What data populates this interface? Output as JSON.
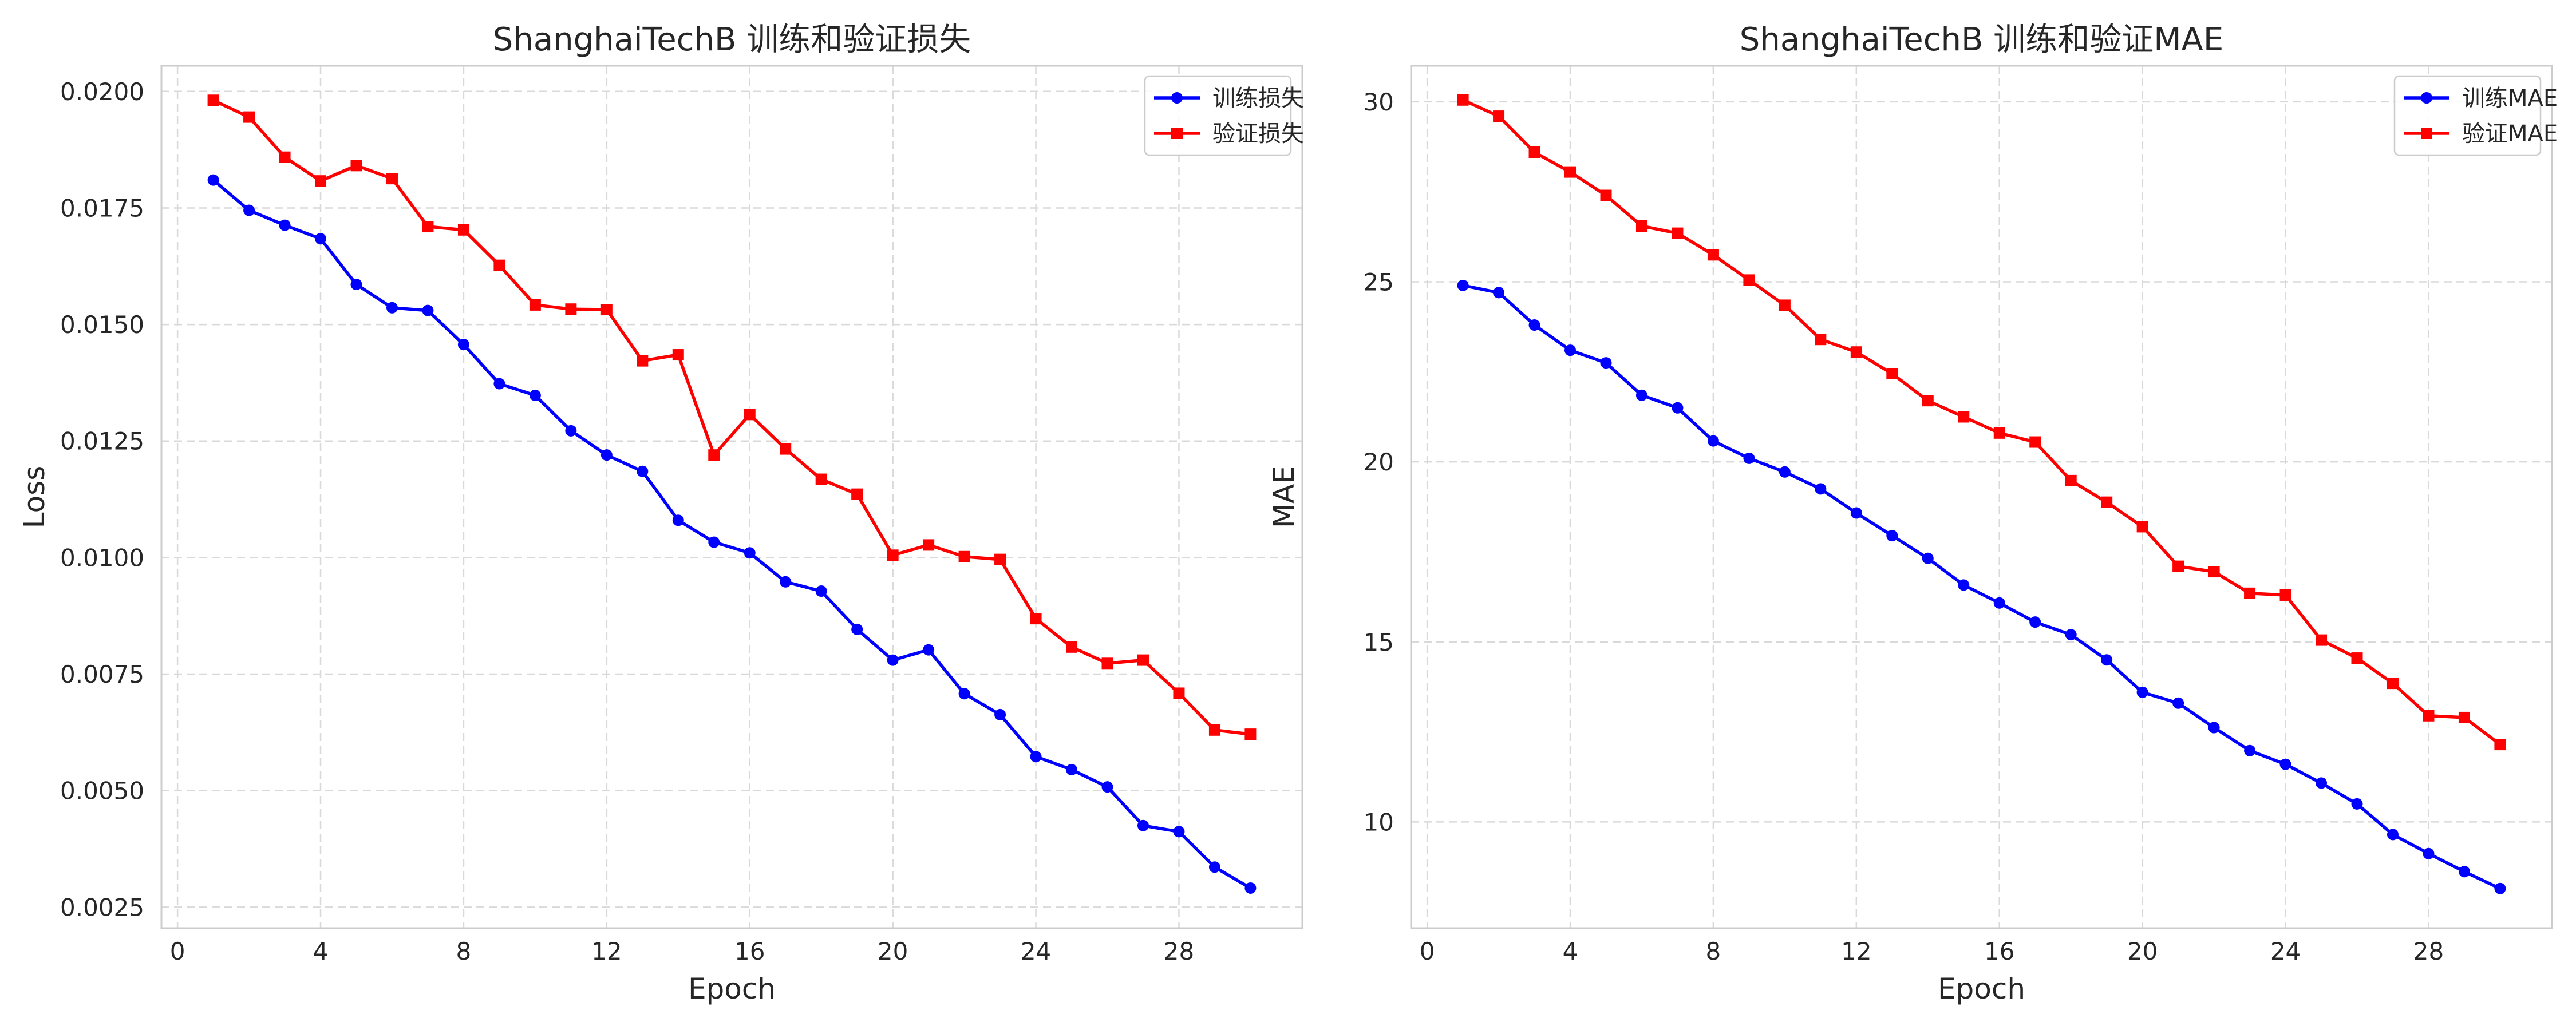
{
  "chart_data": [
    {
      "type": "line",
      "title": "ShanghaiTechB 训练和验证损失",
      "xlabel": "Epoch",
      "ylabel": "Loss",
      "xlim": [
        -0.45,
        31.45
      ],
      "ylim": [
        0.00205,
        0.02055
      ],
      "xticks": [
        0,
        4,
        8,
        12,
        16,
        20,
        24,
        28
      ],
      "yticks": [
        0.0025,
        0.005,
        0.0075,
        0.01,
        0.0125,
        0.015,
        0.0175,
        0.02
      ],
      "ytick_labels": [
        "0.0025",
        "0.0050",
        "0.0075",
        "0.0100",
        "0.0125",
        "0.0150",
        "0.0175",
        "0.0200"
      ],
      "grid": true,
      "legend_position": "upper right",
      "x": [
        1,
        2,
        3,
        4,
        5,
        6,
        7,
        8,
        9,
        10,
        11,
        12,
        13,
        14,
        15,
        16,
        17,
        18,
        19,
        20,
        21,
        22,
        23,
        24,
        25,
        26,
        27,
        28,
        29,
        30
      ],
      "series": [
        {
          "name": "训练损失",
          "color": "#0000ff",
          "marker": "circle",
          "values": [
            0.0181,
            0.01745,
            0.01713,
            0.01684,
            0.01586,
            0.01536,
            0.0153,
            0.01457,
            0.01373,
            0.01348,
            0.01272,
            0.0122,
            0.01185,
            0.0108,
            0.01033,
            0.0101,
            0.00948,
            0.00928,
            0.00846,
            0.0078,
            0.00802,
            0.00708,
            0.00663,
            0.00573,
            0.00545,
            0.00508,
            0.00425,
            0.00412,
            0.00336,
            0.00291
          ]
        },
        {
          "name": "验证损失",
          "color": "#ff0000",
          "marker": "square",
          "values": [
            0.01981,
            0.01945,
            0.01859,
            0.01808,
            0.01841,
            0.01813,
            0.0171,
            0.01703,
            0.01627,
            0.01542,
            0.01533,
            0.01532,
            0.01422,
            0.01435,
            0.0122,
            0.01307,
            0.01233,
            0.01168,
            0.01136,
            0.01005,
            0.01027,
            0.01002,
            0.00996,
            0.00869,
            0.00808,
            0.00773,
            0.0078,
            0.00709,
            0.0063,
            0.00621
          ]
        }
      ]
    },
    {
      "type": "line",
      "title": "ShanghaiTechB 训练和验证MAE",
      "xlabel": "Epoch",
      "ylabel": "MAE",
      "xlim": [
        -0.45,
        31.45
      ],
      "ylim": [
        7.05,
        31.0
      ],
      "xticks": [
        0,
        4,
        8,
        12,
        16,
        20,
        24,
        28
      ],
      "yticks": [
        10,
        15,
        20,
        25,
        30
      ],
      "ytick_labels": [
        "10",
        "15",
        "20",
        "25",
        "30"
      ],
      "grid": true,
      "legend_position": "upper right",
      "x": [
        1,
        2,
        3,
        4,
        5,
        6,
        7,
        8,
        9,
        10,
        11,
        12,
        13,
        14,
        15,
        16,
        17,
        18,
        19,
        20,
        21,
        22,
        23,
        24,
        25,
        26,
        27,
        28,
        29,
        30
      ],
      "series": [
        {
          "name": "训练MAE",
          "color": "#0000ff",
          "marker": "circle",
          "values": [
            24.9,
            24.7,
            23.8,
            23.1,
            22.75,
            21.85,
            21.5,
            20.58,
            20.1,
            19.72,
            19.25,
            18.58,
            17.95,
            17.32,
            16.58,
            16.08,
            15.55,
            15.2,
            14.5,
            13.6,
            13.3,
            12.62,
            11.98,
            11.6,
            11.08,
            10.5,
            9.65,
            9.12,
            8.62,
            8.15
          ]
        },
        {
          "name": "验证MAE",
          "color": "#ff0000",
          "marker": "square",
          "values": [
            30.05,
            29.6,
            28.6,
            28.05,
            27.4,
            26.55,
            26.35,
            25.75,
            25.05,
            24.35,
            23.4,
            23.05,
            22.45,
            21.7,
            21.25,
            20.8,
            20.55,
            19.48,
            18.88,
            18.2,
            17.1,
            16.95,
            16.35,
            16.3,
            15.05,
            14.55,
            13.85,
            12.95,
            12.9,
            12.15
          ]
        }
      ]
    }
  ]
}
